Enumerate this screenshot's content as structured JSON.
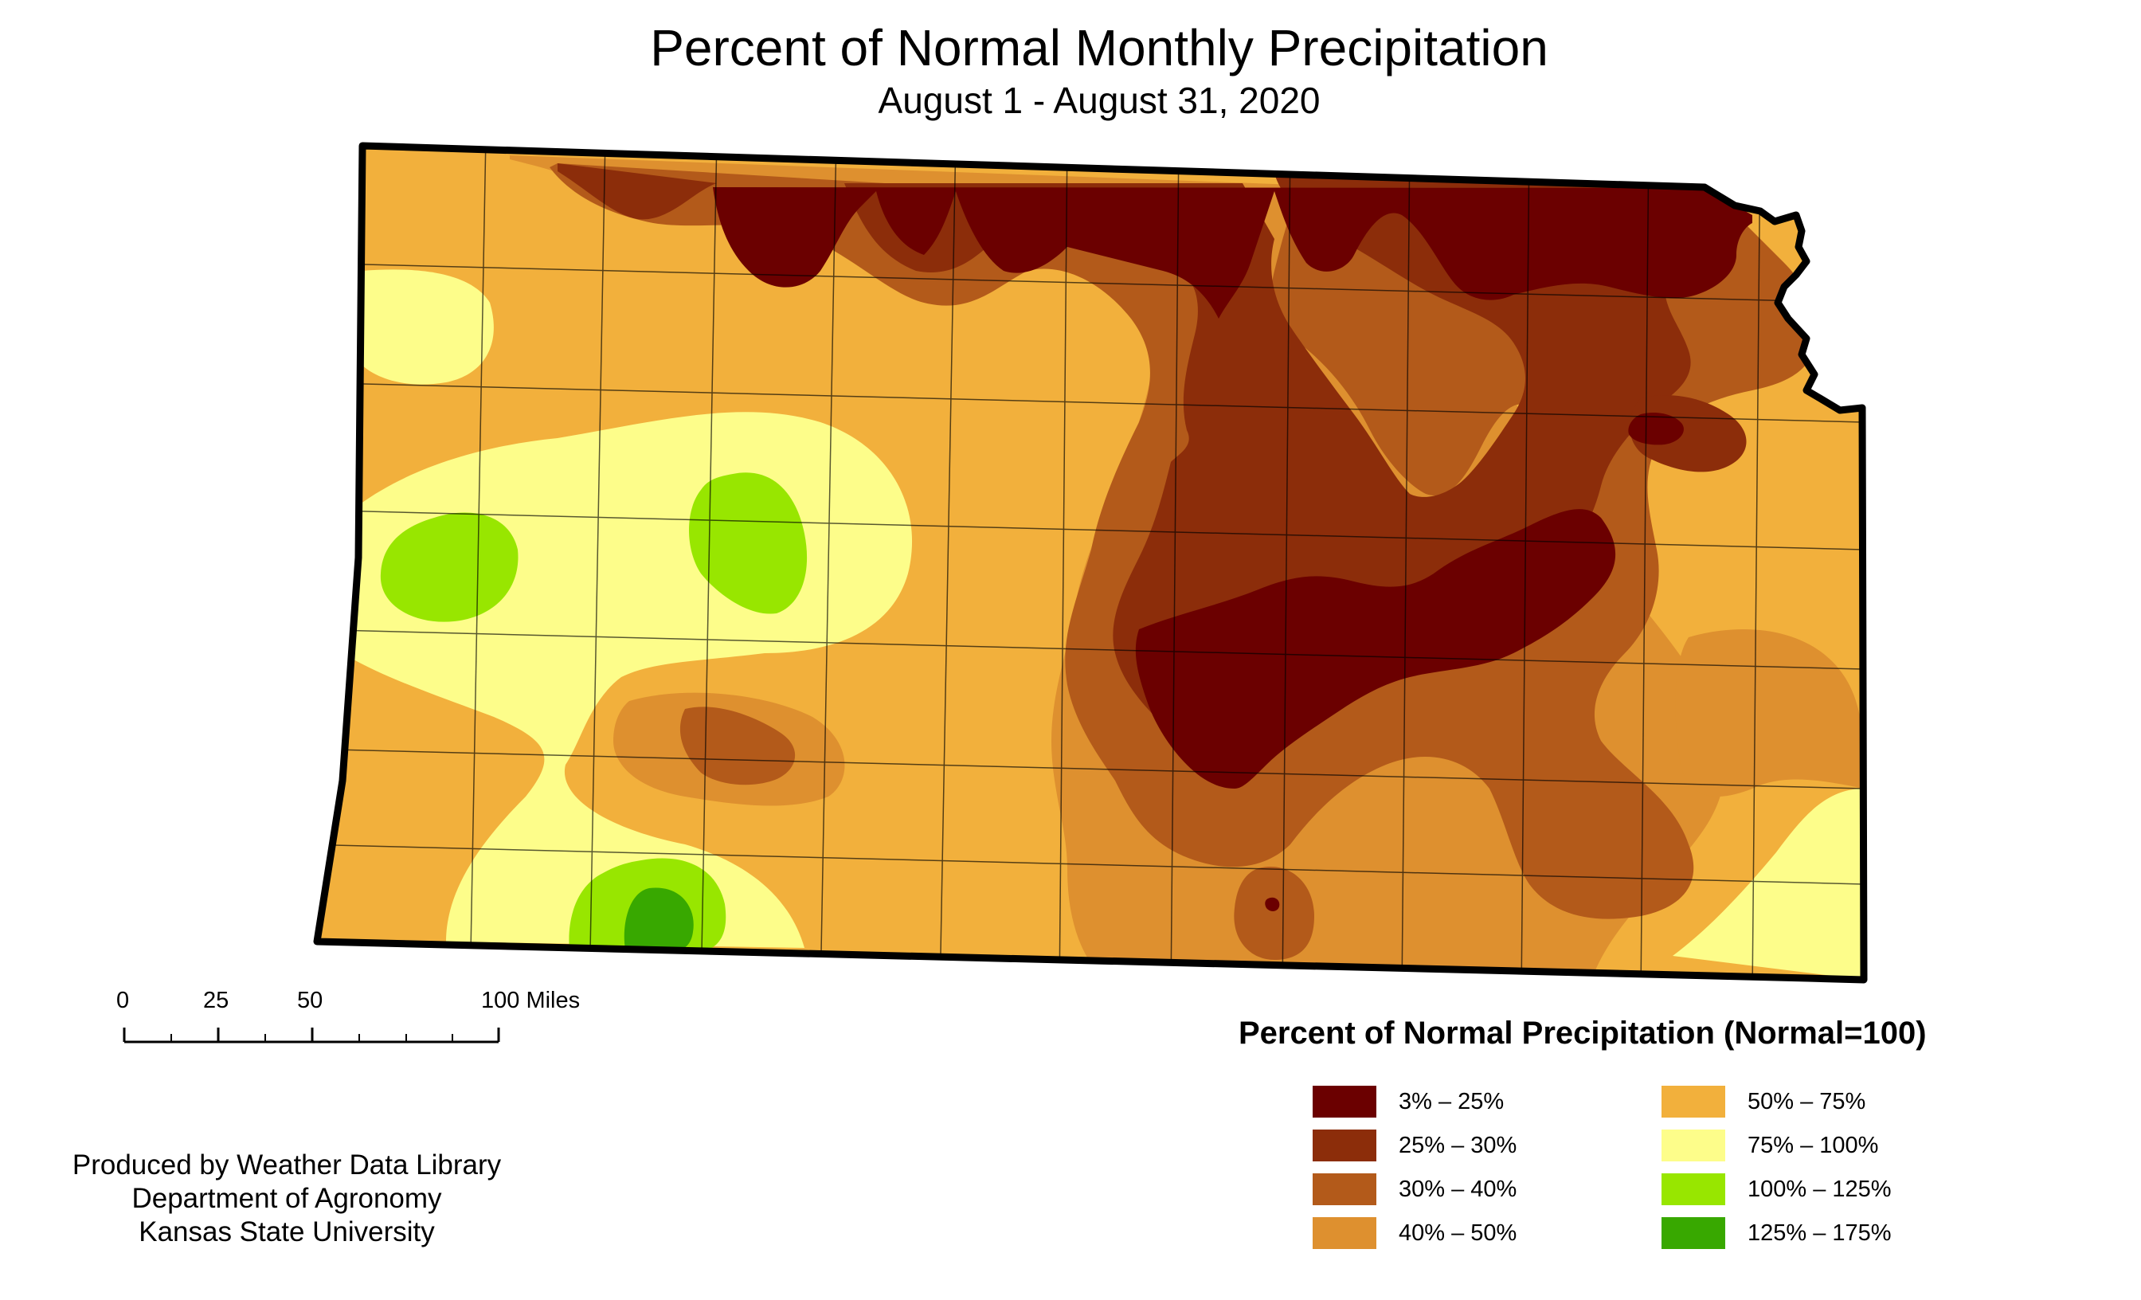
{
  "title": "Percent of Normal Monthly Precipitation",
  "subtitle": "August 1 - August 31, 2020",
  "scale": {
    "ticks": [
      "0",
      "25",
      "50",
      "100 Miles"
    ]
  },
  "credit": {
    "line1": "Produced by Weather Data Library",
    "line2": "Department of Agronomy",
    "line3": "Kansas State University"
  },
  "legend": {
    "title": "Percent of Normal Precipitation (Normal=100)",
    "items": [
      {
        "label": "3% – 25%",
        "color": "#6b0000"
      },
      {
        "label": "25% – 30%",
        "color": "#8c2d0a"
      },
      {
        "label": "30% – 40%",
        "color": "#b35a1a"
      },
      {
        "label": "40% – 50%",
        "color": "#de902f"
      },
      {
        "label": "50% – 75%",
        "color": "#f2b03c"
      },
      {
        "label": "75% – 100%",
        "color": "#fdfd8a"
      },
      {
        "label": "100% – 125%",
        "color": "#98e600"
      },
      {
        "label": "125% – 175%",
        "color": "#38a800"
      }
    ]
  },
  "map": {
    "region": "Kansas",
    "base_color": "#f2b03c"
  }
}
